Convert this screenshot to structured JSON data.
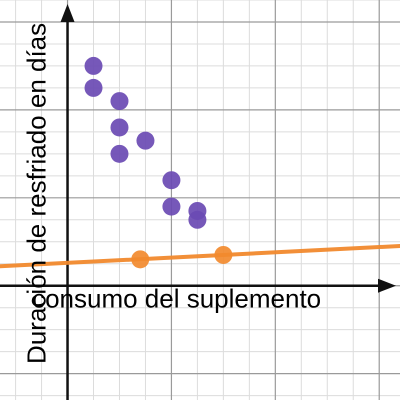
{
  "chart_data": {
    "type": "scatter",
    "xlabel": "consumo del suplemento",
    "ylabel": "Duración de resfriado en días",
    "xlim": [
      -0.65,
      3.2
    ],
    "ylim": [
      -1.3,
      3.25
    ],
    "grid": true,
    "series": [
      {
        "color": "#6a4ab3",
        "points": [
          {
            "x": 0.25,
            "y": 2.5
          },
          {
            "x": 0.25,
            "y": 2.25
          },
          {
            "x": 0.5,
            "y": 2.1
          },
          {
            "x": 0.5,
            "y": 1.8
          },
          {
            "x": 0.5,
            "y": 1.5
          },
          {
            "x": 0.75,
            "y": 1.65
          },
          {
            "x": 1.0,
            "y": 1.2
          },
          {
            "x": 1.0,
            "y": 0.9
          },
          {
            "x": 1.25,
            "y": 0.85
          },
          {
            "x": 1.25,
            "y": 0.75
          }
        ]
      },
      {
        "color": "#f28a2e",
        "points": [
          {
            "x": 0.7,
            "y": 0.3
          },
          {
            "x": 1.5,
            "y": 0.35
          }
        ],
        "trendline": {
          "slope": 0.06,
          "intercept": 0.26
        }
      }
    ]
  }
}
